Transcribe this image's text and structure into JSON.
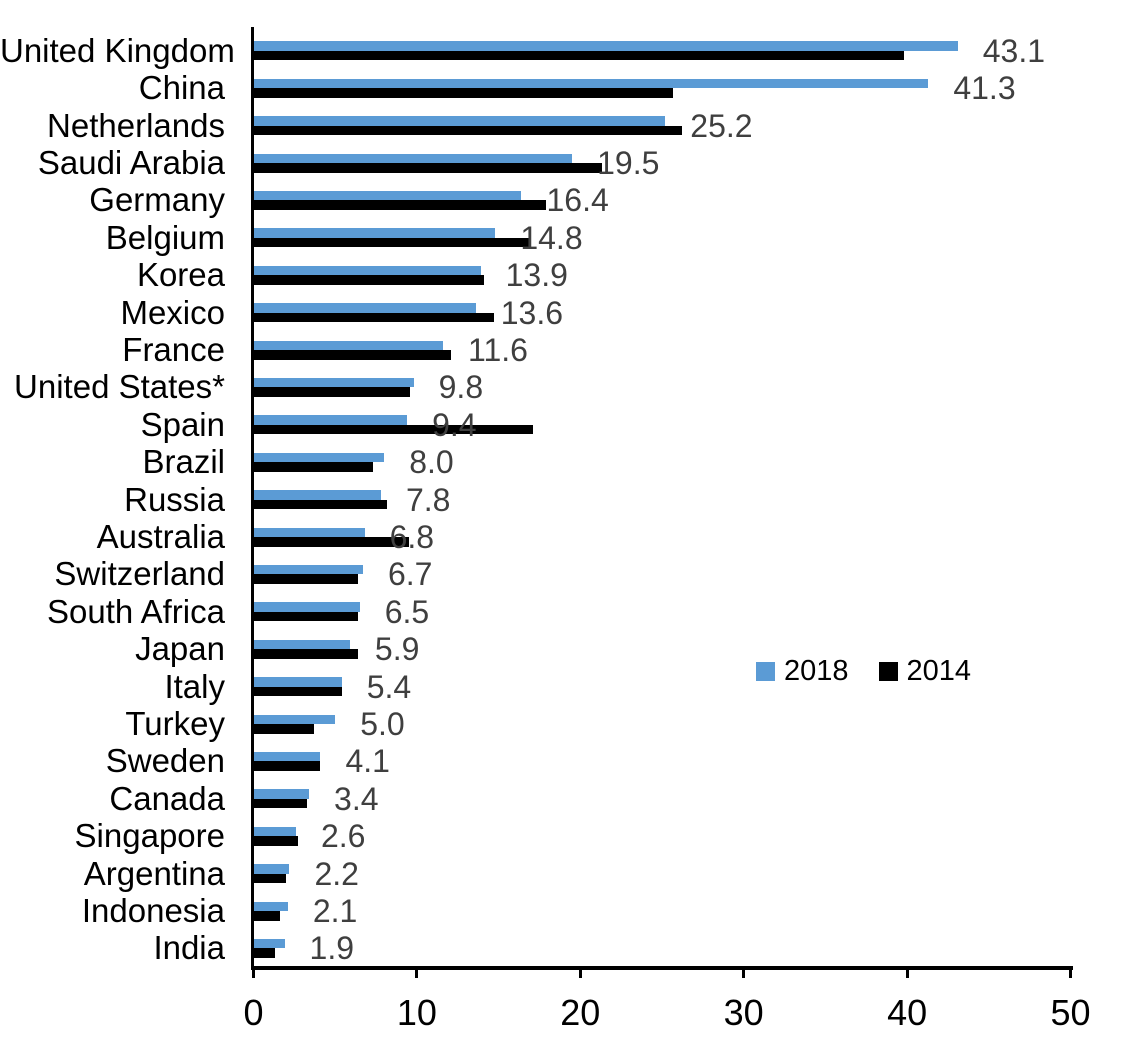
{
  "chart_data": {
    "type": "bar",
    "orientation": "horizontal",
    "title": "",
    "categories": [
      "United Kingdom",
      "China",
      "Netherlands",
      "Saudi Arabia",
      "Germany",
      "Belgium",
      "Korea",
      "Mexico",
      "France",
      "United States*",
      "Spain",
      "Brazil",
      "Russia",
      "Australia",
      "Switzerland",
      "South Africa",
      "Japan",
      "Italy",
      "Turkey",
      "Sweden",
      "Canada",
      "Singapore",
      "Argentina",
      "Indonesia",
      "India"
    ],
    "series": [
      {
        "name": "2018",
        "color": "#5B9BD5",
        "data_labels_shown": true,
        "values": [
          43.1,
          41.3,
          25.2,
          19.5,
          16.4,
          14.8,
          13.9,
          13.6,
          11.6,
          9.8,
          9.4,
          8.0,
          7.8,
          6.8,
          6.7,
          6.5,
          5.9,
          5.4,
          5.0,
          4.1,
          3.4,
          2.6,
          2.2,
          2.1,
          1.9
        ]
      },
      {
        "name": "2014",
        "color": "#000000",
        "data_labels_shown": false,
        "values": [
          39.8,
          25.7,
          26.2,
          21.3,
          17.9,
          17.0,
          14.1,
          14.7,
          12.1,
          9.6,
          17.1,
          7.3,
          8.2,
          9.5,
          6.4,
          6.4,
          6.4,
          5.4,
          3.7,
          4.1,
          3.3,
          2.7,
          2.0,
          1.6,
          1.3
        ]
      }
    ],
    "data_labels": [
      "43.1",
      "41.3",
      "25.2",
      "19.5",
      "16.4",
      "14.8",
      "13.9",
      "13.6",
      "11.6",
      "9.8",
      "9.4",
      "8.0",
      "7.8",
      "6.8",
      "6.7",
      "6.5",
      "5.9",
      "5.4",
      "5.0",
      "4.1",
      "3.4",
      "2.6",
      "2.2",
      "2.1",
      "1.9"
    ],
    "xlabel": "",
    "ylabel": "",
    "xlim": [
      0,
      50
    ],
    "x_axis": {
      "ticks": [
        0,
        10,
        20,
        30,
        40,
        50
      ]
    },
    "grid": false,
    "legend_position": "middle-right",
    "colors": {
      "series_2018": "#5B9BD5",
      "series_2014": "#000000",
      "value_label_text": "#3f3f3f",
      "axis_text": "#000000",
      "background": "#ffffff"
    }
  }
}
